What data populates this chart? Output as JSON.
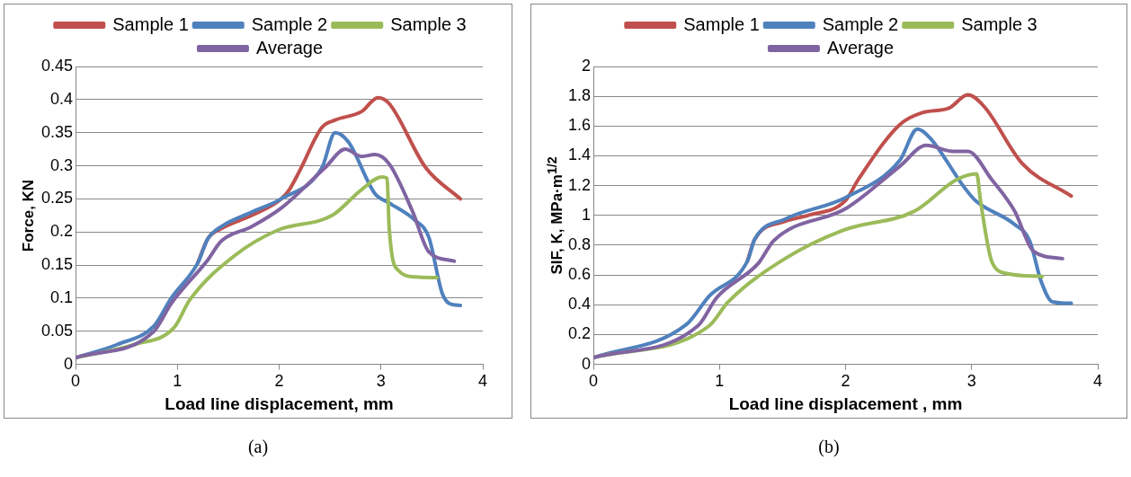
{
  "chart_data": [
    {
      "type": "line",
      "xlabel": "Load line displacement, mm",
      "ylabel": "Force, KN",
      "xlim": [
        0,
        4
      ],
      "xticks": [
        0,
        1,
        2,
        3,
        4
      ],
      "ylim": [
        0,
        0.45
      ],
      "yticks": [
        0,
        0.05,
        0.1,
        0.15,
        0.2,
        0.25,
        0.3,
        0.35,
        0.4,
        0.45
      ],
      "grid": "y",
      "legend": "top",
      "marker": "none",
      "line_style": "solid",
      "annotations": [
        "(a)"
      ],
      "series": [
        {
          "name": "Sample 1",
          "color": "#c0504d",
          "x": [
            1.2,
            1.3,
            1.43,
            1.73,
            2.02,
            2.1,
            2.2,
            2.42,
            2.55,
            2.81,
            2.97,
            3.08,
            3.44,
            3.78
          ],
          "values": [
            0.153,
            0.19,
            0.205,
            0.225,
            0.25,
            0.264,
            0.292,
            0.358,
            0.369,
            0.382,
            0.403,
            0.394,
            0.297,
            0.25
          ]
        },
        {
          "name": "Sample 2",
          "color": "#4f81bd",
          "x": [
            0,
            0.41,
            0.77,
            0.94,
            1.2,
            1.3,
            1.43,
            1.73,
            2.02,
            2.42,
            2.55,
            2.68,
            2.94,
            3.08,
            3.34,
            3.47,
            3.6,
            3.67,
            3.78
          ],
          "values": [
            0.01,
            0.03,
            0.058,
            0.1,
            0.153,
            0.19,
            0.208,
            0.23,
            0.25,
            0.297,
            0.35,
            0.336,
            0.258,
            0.244,
            0.217,
            0.192,
            0.108,
            0.092,
            0.089
          ]
        },
        {
          "name": "Sample 3",
          "color": "#9bbb59",
          "x": [
            0,
            0.58,
            0.97,
            1.12,
            1.56,
            1.99,
            2.52,
            2.81,
            3.01,
            3.06,
            3.08,
            3.17,
            3.34,
            3.55
          ],
          "values": [
            0.01,
            0.03,
            0.056,
            0.097,
            0.164,
            0.203,
            0.225,
            0.264,
            0.283,
            0.281,
            0.208,
            0.142,
            0.132,
            0.131
          ]
        },
        {
          "name": "Average",
          "color": "#8064a2",
          "x": [
            0,
            0.77,
            0.94,
            1.3,
            1.43,
            1.73,
            2.02,
            2.45,
            2.65,
            2.81,
            2.94,
            3.08,
            3.31,
            3.47,
            3.72
          ],
          "values": [
            0.01,
            0.05,
            0.092,
            0.158,
            0.186,
            0.208,
            0.236,
            0.297,
            0.325,
            0.314,
            0.317,
            0.303,
            0.231,
            0.17,
            0.156
          ]
        }
      ]
    },
    {
      "type": "line",
      "xlabel": "Load line displacement , mm",
      "ylabel": "SIF, K, MPa·m$^{1/2}$",
      "xlim": [
        0,
        4
      ],
      "xticks": [
        0,
        1,
        2,
        3,
        4
      ],
      "ylim": [
        0,
        2
      ],
      "yticks": [
        0,
        0.2,
        0.4,
        0.6,
        0.8,
        1,
        1.2,
        1.4,
        1.6,
        1.8,
        2
      ],
      "grid": "y",
      "legend": "top",
      "marker": "none",
      "line_style": "solid",
      "annotations": [
        "(b)"
      ],
      "series": [
        {
          "name": "Sample 1",
          "color": "#c0504d",
          "x": [
            1.22,
            1.28,
            1.52,
            1.7,
            2.0,
            2.1,
            2.43,
            2.61,
            2.82,
            2.97,
            3.1,
            3.4,
            3.79
          ],
          "values": [
            0.69,
            0.84,
            0.96,
            1.0,
            1.1,
            1.24,
            1.61,
            1.69,
            1.72,
            1.81,
            1.73,
            1.35,
            1.13
          ]
        },
        {
          "name": "Sample 2",
          "color": "#4f81bd",
          "x": [
            0,
            0.74,
            0.92,
            1.22,
            1.28,
            1.52,
            2.0,
            2.43,
            2.57,
            2.67,
            2.94,
            3.03,
            3.34,
            3.46,
            3.55,
            3.64,
            3.79
          ],
          "values": [
            0.045,
            0.27,
            0.46,
            0.69,
            0.84,
            0.975,
            1.12,
            1.37,
            1.58,
            1.52,
            1.19,
            1.1,
            0.94,
            0.83,
            0.56,
            0.42,
            0.41
          ]
        },
        {
          "name": "Sample 3",
          "color": "#9bbb59",
          "x": [
            0,
            0.92,
            1.07,
            1.52,
            1.98,
            2.55,
            2.88,
            3.04,
            3.07,
            3.16,
            3.28,
            3.56
          ],
          "values": [
            0.045,
            0.26,
            0.42,
            0.71,
            0.9,
            1.03,
            1.24,
            1.28,
            1.1,
            0.69,
            0.61,
            0.59
          ]
        },
        {
          "name": "Average",
          "color": "#8064a2",
          "x": [
            0,
            0.83,
            0.98,
            1.31,
            1.43,
            2.01,
            2.43,
            2.64,
            2.85,
            2.97,
            3.16,
            3.34,
            3.49,
            3.72
          ],
          "values": [
            0.045,
            0.26,
            0.45,
            0.68,
            0.83,
            1.05,
            1.33,
            1.47,
            1.43,
            1.43,
            1.24,
            1.03,
            0.76,
            0.71
          ]
        }
      ]
    }
  ]
}
